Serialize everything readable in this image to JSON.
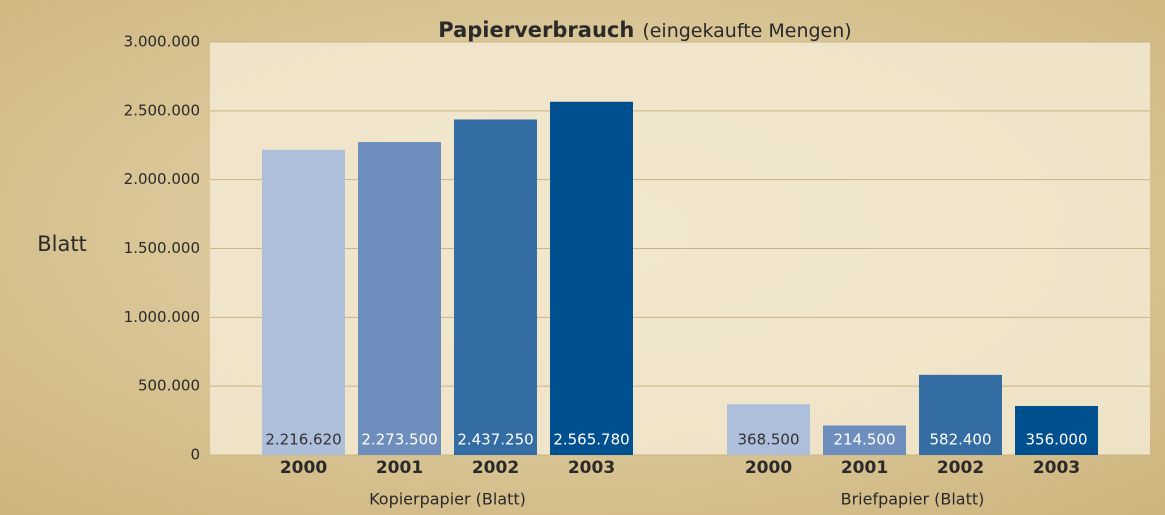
{
  "chart_data": {
    "type": "bar",
    "title": "Papierverbrauch",
    "subtitle": "(eingekaufte Mengen)",
    "y_label": "Blatt",
    "categories": [
      "Kopierpapier (Blatt)",
      "Briefpapier (Blatt)"
    ],
    "series": [
      {
        "name": "2000",
        "color": "#aebfdc",
        "values": [
          2216620,
          368500
        ],
        "value_labels": [
          "2.216.620",
          "368.500"
        ]
      },
      {
        "name": "2001",
        "color": "#6e8fbd",
        "values": [
          2273500,
          214500
        ],
        "value_labels": [
          "2.273.500",
          "214.500"
        ]
      },
      {
        "name": "2002",
        "color": "#346ca4",
        "values": [
          2437250,
          582400
        ],
        "value_labels": [
          "2.437.250",
          "582.400"
        ]
      },
      {
        "name": "2003",
        "color": "#00508f",
        "values": [
          2565780,
          356000
        ],
        "value_labels": [
          "2.565.780",
          "356.000"
        ]
      }
    ],
    "ylim": [
      0,
      3000000
    ],
    "yticks": [
      0,
      {
        "value": 500000,
        "label": "500.000"
      },
      {
        "value": 1000000,
        "label": "1.000.000"
      },
      {
        "value": 1500000,
        "label": "1.500.000"
      },
      {
        "value": 2000000,
        "label": "2.000.000"
      },
      {
        "value": 2500000,
        "label": "2.500.000"
      },
      {
        "value": 3000000,
        "label": "3.000.000"
      }
    ],
    "grid": true
  }
}
